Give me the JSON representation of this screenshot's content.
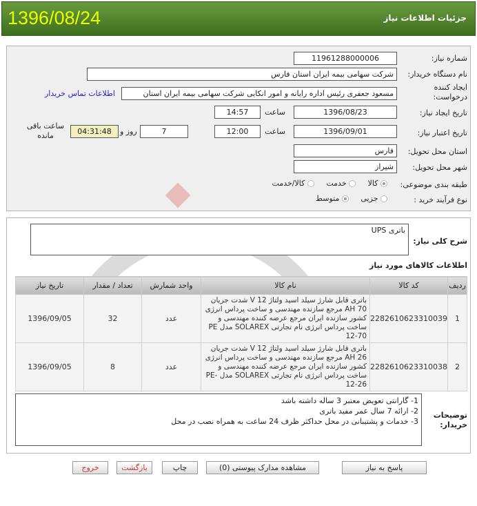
{
  "header": {
    "title": "جزئیات اطلاعات نیاز",
    "date": "1396/08/24"
  },
  "form": {
    "need_number_label": "شماره نیاز:",
    "need_number": "11961288000006",
    "buyer_label": "نام دستگاه خریدار:",
    "buyer": "شرکت سهامی بیمه ایران استان فارس",
    "creator_label": "ایجاد کننده درخواست:",
    "creator": "مسعود جعفری رئیس اداره رایانه و امور انکایی شرکت سهامی بیمه ایران استان",
    "contact_link": "اطلاعات تماس خریدار",
    "created_label": "تاریخ ایجاد نیاز:",
    "created_date": "1396/08/23",
    "time_label": "ساعت",
    "created_time": "14:57",
    "valid_label": "تاریخ اعتبار نیاز:",
    "valid_date": "1396/09/01",
    "valid_time": "12:00",
    "days": "7",
    "days_label": "روز و",
    "remaining": "04:31:48",
    "remaining_label": "ساعت باقی مانده",
    "province_label": "استان محل تحویل:",
    "province": "فارس",
    "city_label": "شهر محل تحویل:",
    "city": "شیراز",
    "category_label": "طبقه بندی موضوعی:",
    "category_options": [
      "کالا",
      "خدمت",
      "کالا/خدمت"
    ],
    "category_selected": "کالا",
    "process_label": "نوع فرآیند خرید :",
    "process_options": [
      "جزیی",
      "متوسط"
    ],
    "process_selected": "متوسط"
  },
  "description": {
    "label": "شرح کلی نیاز:",
    "value": "باتری UPS"
  },
  "goods": {
    "title": "اطلاعات کالاهای مورد نیاز",
    "columns": [
      "ردیف",
      "کد کالا",
      "نام کالا",
      "واحد شمارش",
      "تعداد / مقدار",
      "تاریخ نیاز"
    ],
    "rows": [
      {
        "row": "1",
        "code": "2282610623310039",
        "name": "باتری قابل شارژ سیلد اسید ولتاژ 12 V شدت جریان 70 AH مرجع سازنده مهندسی و ساخت پرداس انرژی کشور سازنده ایران مرجع عرضه کننده مهندسی و ساخت پرداس انرژی نام تجارتی SOLAREX مدل PE 12-70",
        "unit": "عدد",
        "qty": "32",
        "date": "1396/09/05"
      },
      {
        "row": "2",
        "code": "2282610623310038",
        "name": "باتری قابل شارژ سیلد اسید ولتاژ 12 V شدت جریان 26 AH مرجع سازنده مهندسی و ساخت پرداس انرژی کشور سازنده ایران مرجع عرضه کننده مهندسی و ساخت پرداس انرژی نام تجارتی SOLAREX مدل PE-12-26",
        "unit": "عدد",
        "qty": "8",
        "date": "1396/09/05"
      }
    ]
  },
  "notes": {
    "label": "توضیحات خریدار:",
    "lines": [
      "1- گارانتی تعویض معتبر 3 ساله داشته باشد",
      "2- ارائه 7 سال عمر مفید باتری",
      "3- خدمات و پشتیبانی در محل حداکثر ظرف 24 ساعت به همراه نصب در محل"
    ]
  },
  "buttons": {
    "reply": "پاسخ به نیاز",
    "attachments": "مشاهده مدارک پیوستی (0)",
    "print": "چاپ",
    "back": "بازگشت",
    "exit": "خروج"
  }
}
